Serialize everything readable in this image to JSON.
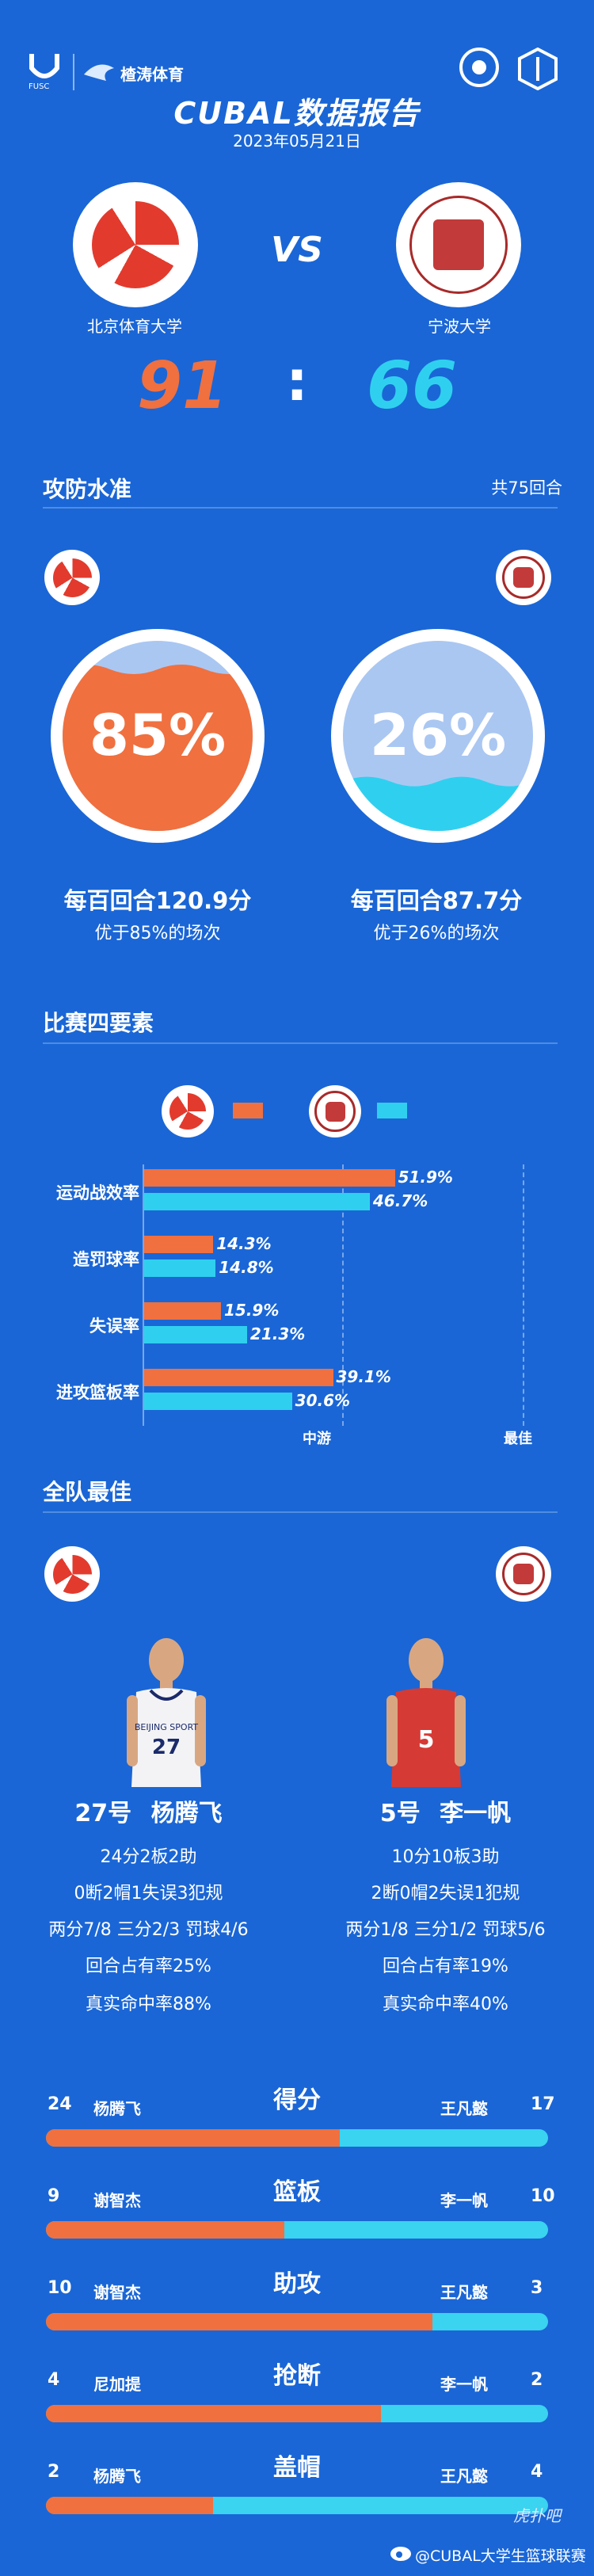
{
  "header": {
    "fusc_label": "FUSC",
    "sponsor_name": "楂涛体育",
    "report_title": "CUBAL数据报告",
    "date": "2023年05月21日"
  },
  "match": {
    "home": {
      "name": "北京体育大学",
      "score": "91"
    },
    "away": {
      "name": "宁波大学",
      "score": "66"
    },
    "vs": "VS",
    "colon": ":"
  },
  "offense_defense": {
    "title": "攻防水准",
    "rounds": "共75回合",
    "home": {
      "pct_text": "85%",
      "pct_value": 0.85,
      "per100": "每百回合120.9分",
      "better": "优于85%的场次"
    },
    "away": {
      "pct_text": "26%",
      "pct_value": 0.26,
      "per100": "每百回合87.7分",
      "better": "优于26%的场次"
    }
  },
  "four_factors": {
    "title": "比赛四要素",
    "axis_mid": "中游",
    "axis_best": "最佳",
    "rows": [
      {
        "label": "运动战效率",
        "home": "51.9%",
        "away": "46.7%",
        "home_v": 51.9,
        "away_v": 46.7
      },
      {
        "label": "造罚球率",
        "home": "14.3%",
        "away": "14.8%",
        "home_v": 14.3,
        "away_v": 14.8
      },
      {
        "label": "失误率",
        "home": "15.9%",
        "away": "21.3%",
        "home_v": 15.9,
        "away_v": 21.3
      },
      {
        "label": "进攻篮板率",
        "home": "39.1%",
        "away": "30.6%",
        "home_v": 39.1,
        "away_v": 30.6
      }
    ]
  },
  "team_best": {
    "title": "全队最佳",
    "home": {
      "jersey_no": "27",
      "jersey_no_label": "27号",
      "name": "杨腾飞",
      "jersey_text": "BEIJING SPORT",
      "line1": "24分2板2助",
      "line2": "0断2帽1失误3犯规",
      "line3": "两分7/8 三分2/3 罚球4/6",
      "line4": "回合占有率25%",
      "line5": "真实命中率88%"
    },
    "away": {
      "jersey_no": "5",
      "jersey_no_label": "5号",
      "name": "李一帆",
      "line1": "10分10板3助",
      "line2": "2断0帽2失误1犯规",
      "line3": "两分1/8 三分1/2 罚球5/6",
      "line4": "回合占有率19%",
      "line5": "真实命中率40%"
    }
  },
  "leaders": [
    {
      "title": "得分",
      "home_val": "24",
      "home_name": "杨腾飞",
      "away_name": "王凡懿",
      "away_val": "17",
      "split": 0.585
    },
    {
      "title": "篮板",
      "home_val": "9",
      "home_name": "谢智杰",
      "away_name": "李一帆",
      "away_val": "10",
      "split": 0.474
    },
    {
      "title": "助攻",
      "home_val": "10",
      "home_name": "谢智杰",
      "away_name": "王凡懿",
      "away_val": "3",
      "split": 0.769
    },
    {
      "title": "抢断",
      "home_val": "4",
      "home_name": "尼加提",
      "away_name": "李一帆",
      "away_val": "2",
      "split": 0.667
    },
    {
      "title": "盖帽",
      "home_val": "2",
      "home_name": "杨腾飞",
      "away_name": "王凡懿",
      "away_val": "4",
      "split": 0.333
    }
  ],
  "footer": {
    "weibo_label": "@CUBAL大学生篮球联赛",
    "watermark": "虎扑吧"
  },
  "colors": {
    "background": "#1a66d6",
    "home": "#f0703f",
    "away": "#2fd0ef"
  }
}
